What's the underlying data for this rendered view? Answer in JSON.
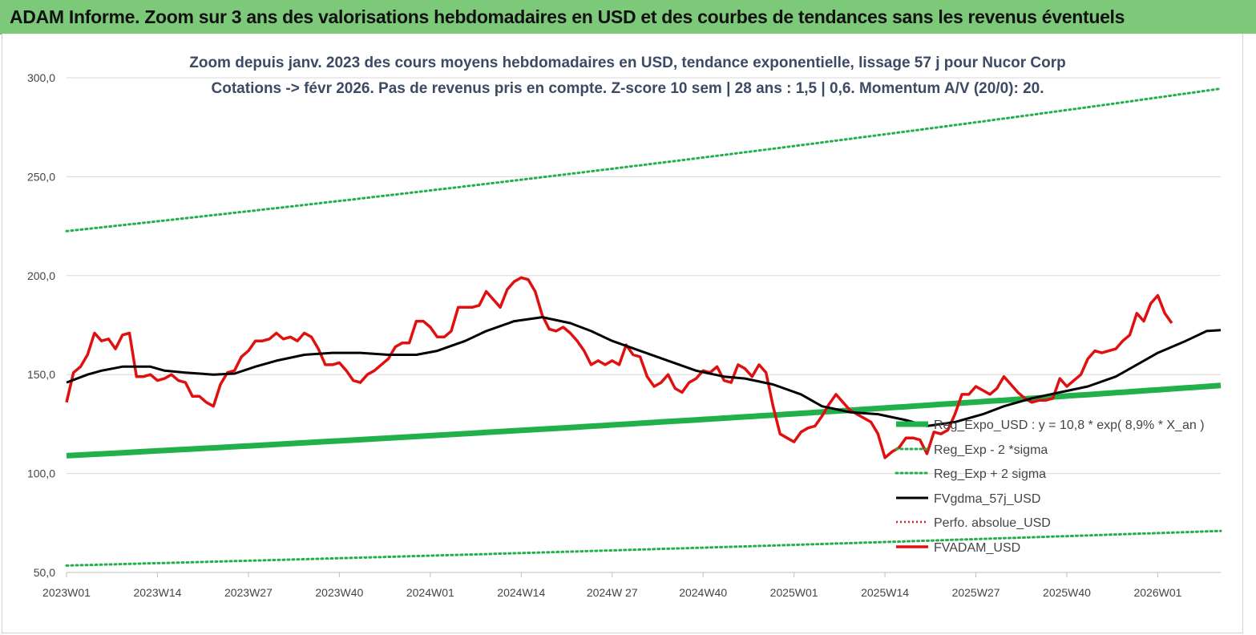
{
  "banner": {
    "title": "ADAM Informe. Zoom sur 3 ans des valorisations hebdomadaires en USD et des courbes de tendances sans les revenus éventuels"
  },
  "colors": {
    "banner_bg": "#7dc97a",
    "reg_expo": "#22b04b",
    "sigma_bands": "#22b04b",
    "moving_avg": "#000000",
    "perfo_absolue": "#e02020",
    "fvadam": "#e01010",
    "title_text": "#3c4a64"
  },
  "chart_data": {
    "type": "line",
    "title_lines": [
      "Zoom depuis janv. 2023 des cours moyens hebdomadaires en USD, tendance exponentielle, lissage 57 j pour Nucor Corp",
      "Cotations -> févr 2026.  Pas de revenus pris en compte. Z-score 10 sem  | 28 ans : 1,5  | 0,6. Momentum A/V (20/0): 20."
    ],
    "ylim": [
      50,
      300
    ],
    "y_ticks": [
      "50,0",
      "100,0",
      "150,0",
      "200,0",
      "250,0",
      "300,0"
    ],
    "x_tick_labels": [
      "2023W01",
      "2023W14",
      "2023W27",
      "2023W40",
      "2024W01",
      "2024W14",
      "2024W 27",
      "2024W40",
      "2025W01",
      "2025W14",
      "2025W27",
      "2025W40",
      "2026W01"
    ],
    "x_tick_weeks": [
      0,
      13,
      26,
      39,
      52,
      65,
      78,
      91,
      104,
      117,
      130,
      143,
      156
    ],
    "x_max_week": 165,
    "grid": "horizontal",
    "legend_position": "right-middle",
    "series": [
      {
        "name": "Reg_Expo_USD : y = 10,8 * exp( 8,9% *  X_an )",
        "style": "thick-solid",
        "start": 109,
        "end": 144.5
      },
      {
        "name": "Reg_Exp - 2 *sigma",
        "style": "dotted",
        "start": 53.5,
        "end": 71
      },
      {
        "name": "Reg_Exp + 2 sigma",
        "style": "dotted",
        "start": 222.5,
        "end": 294.5
      },
      {
        "name": "FVgdma_57j_USD",
        "style": "solid",
        "points": [
          [
            0,
            146
          ],
          [
            3,
            150
          ],
          [
            5,
            152
          ],
          [
            8,
            154
          ],
          [
            12,
            154
          ],
          [
            14,
            152
          ],
          [
            17,
            151
          ],
          [
            21,
            150
          ],
          [
            24,
            150.5
          ],
          [
            27,
            154
          ],
          [
            30,
            157
          ],
          [
            34,
            160
          ],
          [
            38,
            161
          ],
          [
            42,
            161
          ],
          [
            46,
            160
          ],
          [
            50,
            160
          ],
          [
            53,
            162
          ],
          [
            57,
            167
          ],
          [
            60,
            172
          ],
          [
            64,
            177
          ],
          [
            68,
            179
          ],
          [
            72,
            176
          ],
          [
            75,
            172
          ],
          [
            78,
            167
          ],
          [
            82,
            162
          ],
          [
            86,
            157
          ],
          [
            90,
            152
          ],
          [
            94,
            149
          ],
          [
            97,
            148
          ],
          [
            101,
            145
          ],
          [
            105,
            140
          ],
          [
            108,
            134
          ],
          [
            112,
            131
          ],
          [
            116,
            130
          ],
          [
            120,
            127
          ],
          [
            123,
            124
          ],
          [
            127,
            126
          ],
          [
            131,
            130
          ],
          [
            134,
            134
          ],
          [
            138,
            138
          ],
          [
            142,
            141
          ],
          [
            146,
            144
          ],
          [
            150,
            149
          ],
          [
            153,
            155
          ],
          [
            156,
            161
          ],
          [
            160,
            167
          ],
          [
            163,
            172
          ],
          [
            165,
            172.5
          ]
        ]
      },
      {
        "name": "Perfo. absolue_USD",
        "style": "dotted",
        "points": []
      },
      {
        "name": "FVADAM_USD",
        "style": "solid",
        "points": [
          [
            0,
            136
          ],
          [
            1,
            151
          ],
          [
            2,
            154
          ],
          [
            3,
            160
          ],
          [
            4,
            171
          ],
          [
            5,
            167
          ],
          [
            6,
            168
          ],
          [
            7,
            163
          ],
          [
            8,
            170
          ],
          [
            9,
            171
          ],
          [
            10,
            149
          ],
          [
            11,
            149
          ],
          [
            12,
            150
          ],
          [
            13,
            147
          ],
          [
            14,
            148
          ],
          [
            15,
            150
          ],
          [
            16,
            147
          ],
          [
            17,
            146
          ],
          [
            18,
            139
          ],
          [
            19,
            139
          ],
          [
            20,
            136
          ],
          [
            21,
            134
          ],
          [
            22,
            145
          ],
          [
            23,
            151
          ],
          [
            24,
            152
          ],
          [
            25,
            159
          ],
          [
            26,
            162
          ],
          [
            27,
            167
          ],
          [
            28,
            167
          ],
          [
            29,
            168
          ],
          [
            30,
            171
          ],
          [
            31,
            168
          ],
          [
            32,
            169
          ],
          [
            33,
            167
          ],
          [
            34,
            171
          ],
          [
            35,
            169
          ],
          [
            36,
            163
          ],
          [
            37,
            155
          ],
          [
            38,
            155
          ],
          [
            39,
            156
          ],
          [
            40,
            152
          ],
          [
            41,
            147
          ],
          [
            42,
            146
          ],
          [
            43,
            150
          ],
          [
            44,
            152
          ],
          [
            45,
            155
          ],
          [
            46,
            158
          ],
          [
            47,
            164
          ],
          [
            48,
            166
          ],
          [
            49,
            166
          ],
          [
            50,
            177
          ],
          [
            51,
            177
          ],
          [
            52,
            174
          ],
          [
            53,
            169
          ],
          [
            54,
            169
          ],
          [
            55,
            172
          ],
          [
            56,
            184
          ],
          [
            57,
            184
          ],
          [
            58,
            184
          ],
          [
            59,
            185
          ],
          [
            60,
            192
          ],
          [
            61,
            188
          ],
          [
            62,
            184
          ],
          [
            63,
            193
          ],
          [
            64,
            197
          ],
          [
            65,
            199
          ],
          [
            66,
            198
          ],
          [
            67,
            192
          ],
          [
            68,
            180
          ],
          [
            69,
            173
          ],
          [
            70,
            172
          ],
          [
            71,
            174
          ],
          [
            72,
            171
          ],
          [
            73,
            167
          ],
          [
            74,
            162
          ],
          [
            75,
            155
          ],
          [
            76,
            157
          ],
          [
            77,
            155
          ],
          [
            78,
            157
          ],
          [
            79,
            155
          ],
          [
            80,
            165
          ],
          [
            81,
            160
          ],
          [
            82,
            159
          ],
          [
            83,
            149
          ],
          [
            84,
            144
          ],
          [
            85,
            146
          ],
          [
            86,
            150
          ],
          [
            87,
            143
          ],
          [
            88,
            141
          ],
          [
            89,
            146
          ],
          [
            90,
            148
          ],
          [
            91,
            152
          ],
          [
            92,
            151
          ],
          [
            93,
            154
          ],
          [
            94,
            147
          ],
          [
            95,
            146
          ],
          [
            96,
            155
          ],
          [
            97,
            153
          ],
          [
            98,
            149
          ],
          [
            99,
            155
          ],
          [
            100,
            151
          ],
          [
            101,
            134
          ],
          [
            102,
            120
          ],
          [
            103,
            118
          ],
          [
            104,
            116
          ],
          [
            105,
            121
          ],
          [
            106,
            123
          ],
          [
            107,
            124
          ],
          [
            108,
            129
          ],
          [
            109,
            135
          ],
          [
            110,
            140
          ],
          [
            111,
            136
          ],
          [
            112,
            132
          ],
          [
            113,
            130
          ],
          [
            114,
            128
          ],
          [
            115,
            126
          ],
          [
            116,
            120
          ],
          [
            117,
            108
          ],
          [
            118,
            111
          ],
          [
            119,
            113
          ],
          [
            120,
            118
          ],
          [
            121,
            118
          ],
          [
            122,
            117
          ],
          [
            123,
            110
          ],
          [
            124,
            121
          ],
          [
            125,
            120
          ],
          [
            126,
            122
          ],
          [
            127,
            130
          ],
          [
            128,
            140
          ],
          [
            129,
            140
          ],
          [
            130,
            144
          ],
          [
            131,
            142
          ],
          [
            132,
            140
          ],
          [
            133,
            143
          ],
          [
            134,
            149
          ],
          [
            135,
            145
          ],
          [
            136,
            141
          ],
          [
            137,
            138
          ],
          [
            138,
            136
          ],
          [
            139,
            137
          ],
          [
            140,
            137
          ],
          [
            141,
            138
          ],
          [
            142,
            148
          ],
          [
            143,
            144
          ],
          [
            144,
            147
          ],
          [
            145,
            150
          ],
          [
            146,
            158
          ],
          [
            147,
            162
          ],
          [
            148,
            161
          ],
          [
            149,
            162
          ],
          [
            150,
            163
          ],
          [
            151,
            167
          ],
          [
            152,
            170
          ],
          [
            153,
            181
          ],
          [
            154,
            177
          ],
          [
            155,
            186
          ],
          [
            156,
            190
          ],
          [
            157,
            181
          ],
          [
            158,
            176
          ]
        ]
      }
    ]
  }
}
